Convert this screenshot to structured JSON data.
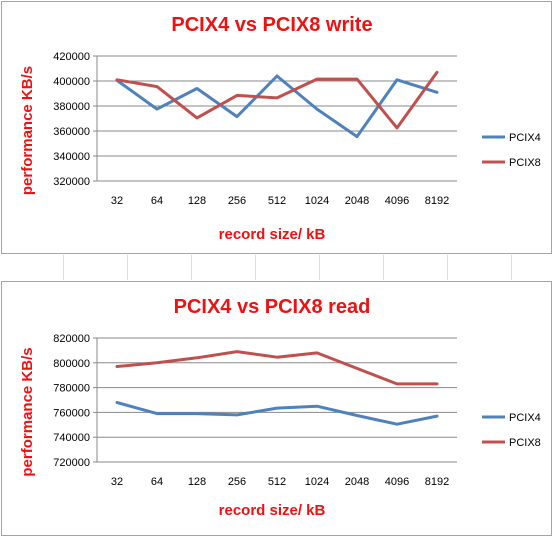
{
  "colors": {
    "pcix4": "#4f81bd",
    "pcix8": "#c0504d",
    "title": "#ee1111"
  },
  "chart_data": [
    {
      "type": "line",
      "title": "PCIX4 vs PCIX8 write",
      "xlabel": "record size/ kB",
      "ylabel": "performance KB/s",
      "categories": [
        "32",
        "64",
        "128",
        "256",
        "512",
        "1024",
        "2048",
        "4096",
        "8192"
      ],
      "ylim": [
        320000,
        420000
      ],
      "yticks": [
        320000,
        340000,
        360000,
        380000,
        400000,
        420000
      ],
      "grid": true,
      "legend": "right",
      "series": [
        {
          "name": "PCIX4",
          "color": "#4f81bd",
          "values": [
            400500,
            377500,
            394000,
            371500,
            404000,
            377500,
            355500,
            401000,
            391000
          ]
        },
        {
          "name": "PCIX8",
          "color": "#c0504d",
          "values": [
            401000,
            395500,
            370500,
            388500,
            386500,
            401500,
            401500,
            362500,
            407000
          ]
        }
      ]
    },
    {
      "type": "line",
      "title": "PCIX4 vs PCIX8 read",
      "xlabel": "record size/ kB",
      "ylabel": "performance KB/s",
      "categories": [
        "32",
        "64",
        "128",
        "256",
        "512",
        "1024",
        "2048",
        "4096",
        "8192"
      ],
      "ylim": [
        720000,
        820000
      ],
      "yticks": [
        720000,
        740000,
        760000,
        780000,
        800000,
        820000
      ],
      "grid": true,
      "legend": "right",
      "series": [
        {
          "name": "PCIX4",
          "color": "#4f81bd",
          "values": [
            768000,
            759000,
            759000,
            758000,
            763500,
            765000,
            757500,
            750500,
            757000
          ]
        },
        {
          "name": "PCIX8",
          "color": "#c0504d",
          "values": [
            797000,
            800000,
            804000,
            809000,
            804500,
            808000,
            795500,
            783000,
            783000
          ]
        }
      ]
    }
  ]
}
